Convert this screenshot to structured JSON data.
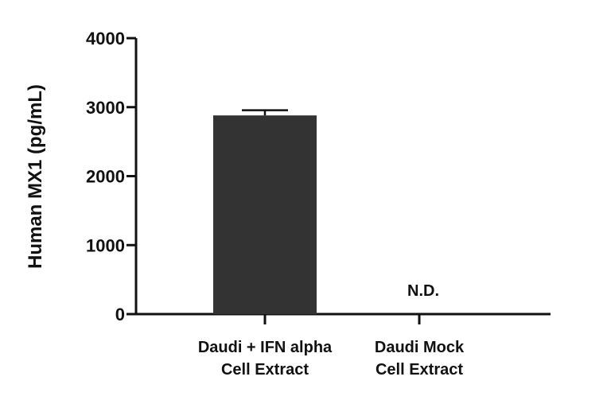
{
  "chart_data": {
    "type": "bar",
    "categories": [
      [
        "Daudi + IFN alpha",
        "Cell Extract"
      ],
      [
        "Daudi Mock",
        "Cell Extract"
      ]
    ],
    "values": [
      2880,
      null
    ],
    "errors": [
      75,
      null
    ],
    "annotations": [
      "",
      "N.D."
    ],
    "ylabel": "Human MX1 (pg/mL)",
    "ylim": [
      0,
      4000
    ],
    "yticks": [
      0,
      1000,
      2000,
      3000,
      4000
    ],
    "bar_color": "#333333",
    "grid": false,
    "legend": "none"
  }
}
